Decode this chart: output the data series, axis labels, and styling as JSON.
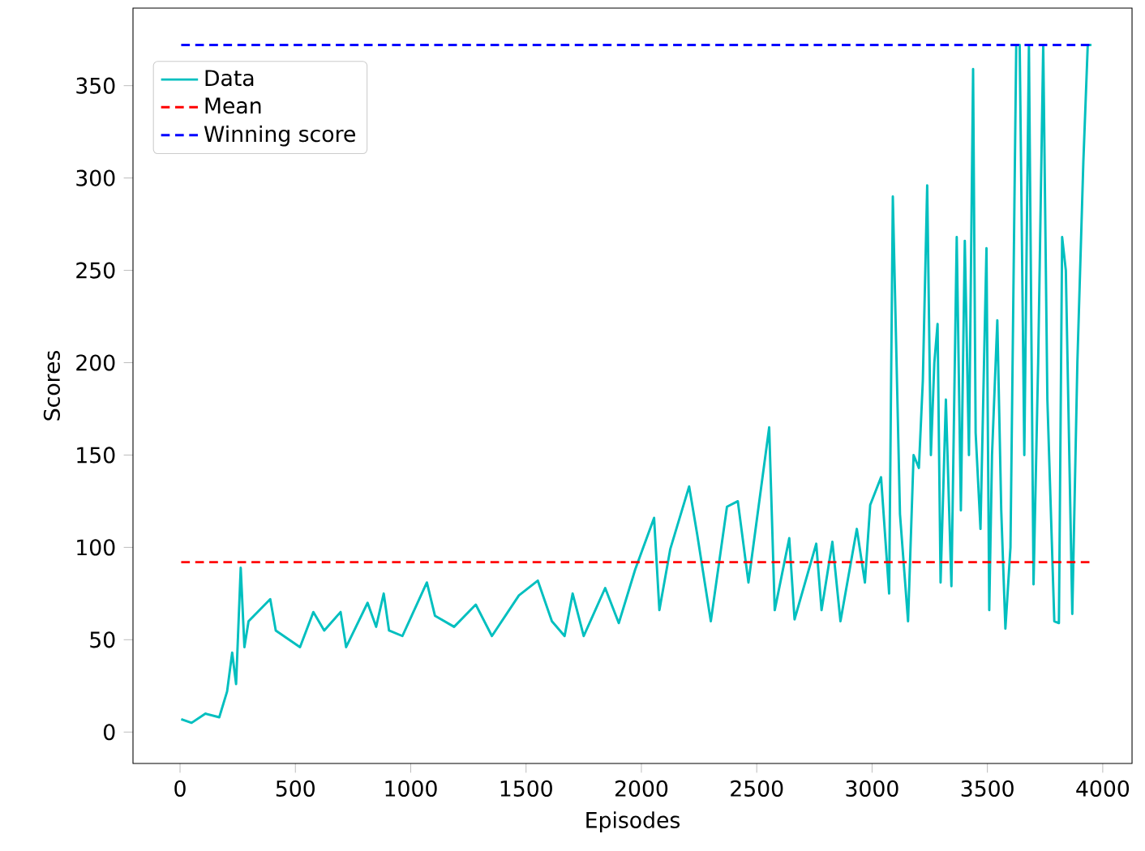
{
  "chart_data": {
    "type": "line",
    "xlabel": "Episodes",
    "ylabel": "Scores",
    "xlim": [
      -204,
      4127
    ],
    "ylim": [
      -17,
      392
    ],
    "xticks": [
      0,
      500,
      1000,
      1500,
      2000,
      2500,
      3000,
      3500,
      4000
    ],
    "yticks": [
      0,
      50,
      100,
      150,
      200,
      250,
      300,
      350
    ],
    "legend": "top left",
    "grid": false,
    "line_style": "solid",
    "marker": "none",
    "series": [
      {
        "name": "Data",
        "color": "#00bfbf",
        "x": [
          5,
          50,
          110,
          170,
          204,
          226,
          243,
          263,
          279,
          297,
          391,
          415,
          520,
          578,
          625,
          696,
          720,
          813,
          850,
          883,
          906,
          964,
          1070,
          1105,
          1188,
          1282,
          1352,
          1469,
          1551,
          1612,
          1667,
          1702,
          1750,
          1843,
          1902,
          1973,
          2008,
          2055,
          2078,
          2125,
          2207,
          2242,
          2301,
          2371,
          2418,
          2464,
          2554,
          2578,
          2641,
          2664,
          2758,
          2781,
          2828,
          2863,
          2934,
          2969,
          2992,
          3039,
          3074,
          3090,
          3121,
          3156,
          3180,
          3203,
          3220,
          3239,
          3255,
          3270,
          3284,
          3297,
          3320,
          3344,
          3367,
          3385,
          3402,
          3420,
          3438,
          3449,
          3470,
          3496,
          3508,
          3520,
          3543,
          3560,
          3578,
          3600,
          3625,
          3640,
          3660,
          3680,
          3700,
          3720,
          3742,
          3760,
          3790,
          3810,
          3824,
          3840,
          3868,
          3890,
          3916,
          3935,
          3951
        ],
        "values": [
          7,
          5,
          10,
          8,
          22,
          43,
          26,
          89,
          46,
          60,
          72,
          55,
          46,
          65,
          55,
          65,
          46,
          70,
          57,
          75,
          55,
          52,
          81,
          63,
          57,
          69,
          52,
          74,
          82,
          60,
          52,
          75,
          52,
          78,
          59,
          88,
          100,
          116,
          66,
          99,
          133,
          107,
          60,
          122,
          125,
          81,
          165,
          66,
          105,
          61,
          102,
          66,
          103,
          60,
          110,
          81,
          123,
          138,
          75,
          290,
          118,
          60,
          150,
          143,
          190,
          296,
          150,
          200,
          221,
          81,
          180,
          79,
          268,
          120,
          266,
          150,
          359,
          162,
          110,
          262,
          66,
          150,
          223,
          120,
          56,
          100,
          372,
          372,
          150,
          372,
          80,
          200,
          372,
          180,
          60,
          59,
          268,
          250,
          64,
          200,
          309,
          372,
          372
        ]
      }
    ],
    "ref_lines": [
      {
        "axis": "y",
        "value": 92,
        "label": "Mean",
        "color": "#ff0000",
        "line_style": "dashed"
      },
      {
        "axis": "y",
        "value": 372,
        "label": "Winning score",
        "color": "#0000ff",
        "line_style": "dashed"
      }
    ]
  }
}
